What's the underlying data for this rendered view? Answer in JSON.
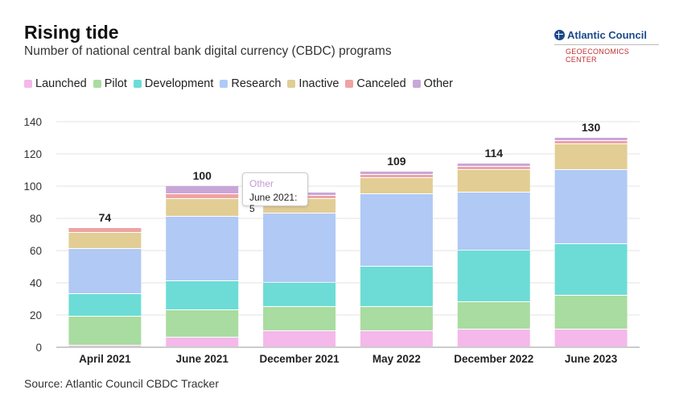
{
  "title": "Rising tide",
  "subtitle": "Number of national central bank digital currency (CBDC) programs",
  "logo": {
    "name": "Atlantic Council",
    "sub": "GEOECONOMICS CENTER"
  },
  "source": "Source: Atlantic Council CBDC Tracker",
  "tooltip": {
    "series": "Other",
    "category": "June 2021",
    "value": "5"
  },
  "colors": {
    "Launched": "#f4b8ea",
    "Pilot": "#a9dca0",
    "Development": "#6ddcd6",
    "Research": "#b0c9f5",
    "Inactive": "#e2cd94",
    "Canceled": "#eea3a3",
    "Other": "#c9a6d8"
  },
  "chart_data": {
    "type": "bar",
    "stacked": true,
    "title": "Rising tide",
    "xlabel": "",
    "ylabel": "",
    "ylim": [
      0,
      140
    ],
    "yticks": [
      0,
      20,
      40,
      60,
      80,
      100,
      120,
      140
    ],
    "categories": [
      "April 2021",
      "June 2021",
      "December 2021",
      "May 2022",
      "December 2022",
      "June 2023"
    ],
    "totals": [
      "74",
      "100",
      "",
      "109",
      "114",
      "130"
    ],
    "series": [
      {
        "name": "Launched",
        "values": [
          1,
          6,
          10,
          10,
          11,
          11
        ]
      },
      {
        "name": "Pilot",
        "values": [
          18,
          17,
          15,
          15,
          17,
          21
        ]
      },
      {
        "name": "Development",
        "values": [
          14,
          18,
          15,
          25,
          32,
          32
        ]
      },
      {
        "name": "Research",
        "values": [
          28,
          40,
          43,
          45,
          36,
          46
        ]
      },
      {
        "name": "Inactive",
        "values": [
          10,
          11,
          9,
          10,
          14,
          16
        ]
      },
      {
        "name": "Canceled",
        "values": [
          3,
          3,
          2,
          2,
          2,
          2
        ]
      },
      {
        "name": "Other",
        "values": [
          0,
          5,
          2,
          2,
          2,
          2
        ]
      }
    ]
  }
}
